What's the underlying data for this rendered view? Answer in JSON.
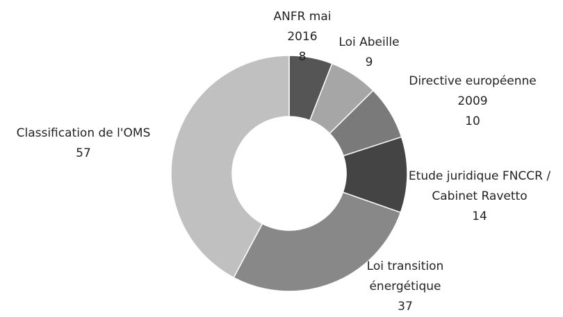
{
  "chart_data": {
    "type": "donut",
    "categories": [
      "ANFR mai 2016",
      "Loi Abeille",
      "Directive européenne 2009",
      "Etude juridique FNCCR / Cabinet Ravetto",
      "Loi transition énergétique",
      "Classification de l'OMS"
    ],
    "values": [
      8,
      9,
      10,
      14,
      37,
      57
    ],
    "colors": [
      "#555555",
      "#a6a6a6",
      "#7a7a7a",
      "#444444",
      "#888888",
      "#c0c0c0"
    ]
  }
}
